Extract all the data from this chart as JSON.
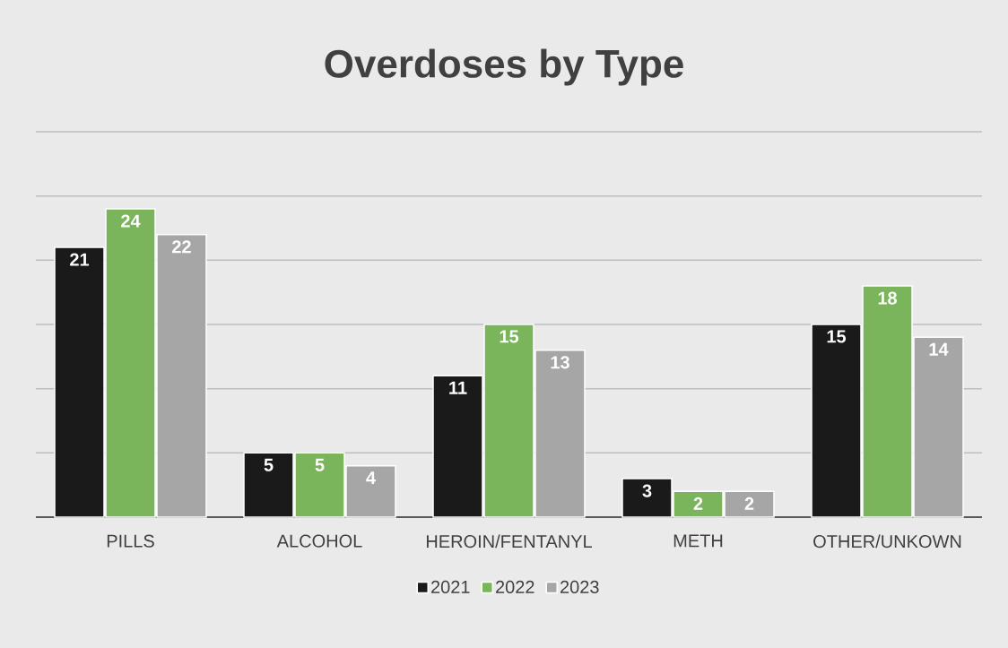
{
  "chart_data": {
    "type": "bar",
    "title": "Overdoses by Type",
    "categories": [
      "PILLS",
      "ALCOHOL",
      "HEROIN/FENTANYL",
      "METH",
      "OTHER/UNKOWN"
    ],
    "series": [
      {
        "name": "2021",
        "color": "#1a1a1a",
        "values": [
          21,
          5,
          11,
          3,
          15
        ]
      },
      {
        "name": "2022",
        "color": "#7ab55c",
        "values": [
          24,
          5,
          15,
          2,
          18
        ]
      },
      {
        "name": "2023",
        "color": "#a6a6a6",
        "values": [
          22,
          4,
          13,
          2,
          14
        ]
      }
    ],
    "ylim": [
      0,
      30
    ],
    "yticks": [
      {
        "value": 0,
        "label": null
      },
      {
        "value": 5,
        "label": null
      },
      {
        "value": 10,
        "label": null
      },
      {
        "value": 15,
        "label": null
      },
      {
        "value": 20,
        "label": null
      },
      {
        "value": 25,
        "label": null
      },
      {
        "value": 30,
        "label": null
      }
    ],
    "grid": "y",
    "legend": "bottom",
    "tick_labels": "x",
    "data_labels": true
  }
}
